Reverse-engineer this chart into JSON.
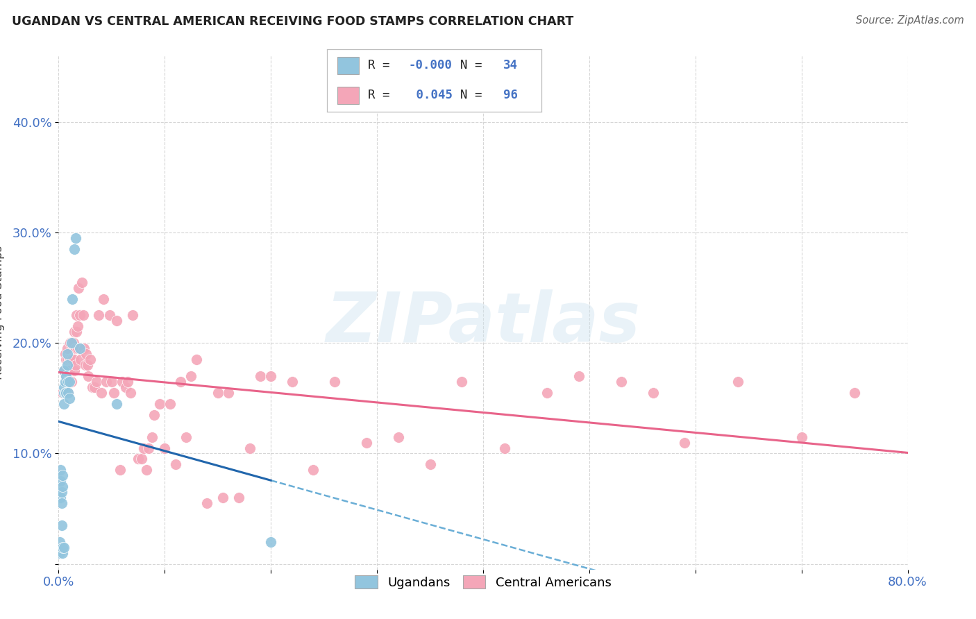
{
  "title": "UGANDAN VS CENTRAL AMERICAN RECEIVING FOOD STAMPS CORRELATION CHART",
  "source": "Source: ZipAtlas.com",
  "ylabel": "Receiving Food Stamps",
  "xlim": [
    0.0,
    0.8
  ],
  "ylim": [
    -0.005,
    0.46
  ],
  "ytick_vals": [
    0.0,
    0.1,
    0.2,
    0.3,
    0.4
  ],
  "ytick_labels": [
    "",
    "10.0%",
    "20.0%",
    "30.0%",
    "40.0%"
  ],
  "xtick_vals": [
    0.0,
    0.1,
    0.2,
    0.3,
    0.4,
    0.5,
    0.6,
    0.7,
    0.8
  ],
  "xtick_labels": [
    "0.0%",
    "",
    "",
    "",
    "",
    "",
    "",
    "",
    "80.0%"
  ],
  "color_ugandan": "#92C5DE",
  "color_central": "#F4A6B8",
  "color_ugandan_line_solid": "#2166AC",
  "color_ugandan_line_dashed": "#6AAED6",
  "color_central_line": "#E8648A",
  "watermark_text": "ZIPatlas",
  "legend_r1": "-0.000",
  "legend_n1": "34",
  "legend_r2": "0.045",
  "legend_n2": "96",
  "ugandan_x": [
    0.001,
    0.001,
    0.002,
    0.002,
    0.002,
    0.003,
    0.003,
    0.003,
    0.004,
    0.004,
    0.004,
    0.004,
    0.005,
    0.005,
    0.005,
    0.005,
    0.005,
    0.006,
    0.006,
    0.007,
    0.007,
    0.008,
    0.008,
    0.009,
    0.009,
    0.01,
    0.01,
    0.012,
    0.013,
    0.015,
    0.016,
    0.02,
    0.055,
    0.2
  ],
  "ugandan_y": [
    0.01,
    0.02,
    0.06,
    0.075,
    0.085,
    0.035,
    0.055,
    0.065,
    0.01,
    0.015,
    0.07,
    0.08,
    0.015,
    0.145,
    0.155,
    0.16,
    0.175,
    0.155,
    0.165,
    0.155,
    0.17,
    0.18,
    0.19,
    0.155,
    0.165,
    0.15,
    0.165,
    0.2,
    0.24,
    0.285,
    0.295,
    0.195,
    0.145,
    0.02
  ],
  "central_x": [
    0.004,
    0.005,
    0.006,
    0.006,
    0.007,
    0.007,
    0.008,
    0.008,
    0.009,
    0.009,
    0.01,
    0.01,
    0.011,
    0.011,
    0.012,
    0.012,
    0.013,
    0.013,
    0.014,
    0.014,
    0.015,
    0.015,
    0.016,
    0.016,
    0.017,
    0.017,
    0.018,
    0.018,
    0.019,
    0.02,
    0.02,
    0.021,
    0.022,
    0.023,
    0.024,
    0.025,
    0.026,
    0.027,
    0.028,
    0.03,
    0.032,
    0.034,
    0.036,
    0.038,
    0.04,
    0.042,
    0.045,
    0.048,
    0.05,
    0.052,
    0.055,
    0.058,
    0.06,
    0.063,
    0.065,
    0.068,
    0.07,
    0.075,
    0.078,
    0.08,
    0.083,
    0.085,
    0.088,
    0.09,
    0.095,
    0.1,
    0.105,
    0.11,
    0.115,
    0.12,
    0.125,
    0.13,
    0.14,
    0.15,
    0.155,
    0.16,
    0.17,
    0.18,
    0.19,
    0.2,
    0.22,
    0.24,
    0.26,
    0.29,
    0.32,
    0.35,
    0.38,
    0.42,
    0.46,
    0.49,
    0.53,
    0.56,
    0.59,
    0.64,
    0.7,
    0.75
  ],
  "central_y": [
    0.155,
    0.175,
    0.155,
    0.19,
    0.17,
    0.185,
    0.185,
    0.195,
    0.155,
    0.175,
    0.175,
    0.185,
    0.185,
    0.2,
    0.165,
    0.185,
    0.185,
    0.2,
    0.185,
    0.2,
    0.175,
    0.21,
    0.18,
    0.195,
    0.21,
    0.225,
    0.195,
    0.215,
    0.25,
    0.195,
    0.225,
    0.185,
    0.255,
    0.225,
    0.195,
    0.18,
    0.19,
    0.18,
    0.17,
    0.185,
    0.16,
    0.16,
    0.165,
    0.225,
    0.155,
    0.24,
    0.165,
    0.225,
    0.165,
    0.155,
    0.22,
    0.085,
    0.165,
    0.16,
    0.165,
    0.155,
    0.225,
    0.095,
    0.095,
    0.105,
    0.085,
    0.105,
    0.115,
    0.135,
    0.145,
    0.105,
    0.145,
    0.09,
    0.165,
    0.115,
    0.17,
    0.185,
    0.055,
    0.155,
    0.06,
    0.155,
    0.06,
    0.105,
    0.17,
    0.17,
    0.165,
    0.085,
    0.165,
    0.11,
    0.115,
    0.09,
    0.165,
    0.105,
    0.155,
    0.17,
    0.165,
    0.155,
    0.11,
    0.165,
    0.115,
    0.155
  ]
}
